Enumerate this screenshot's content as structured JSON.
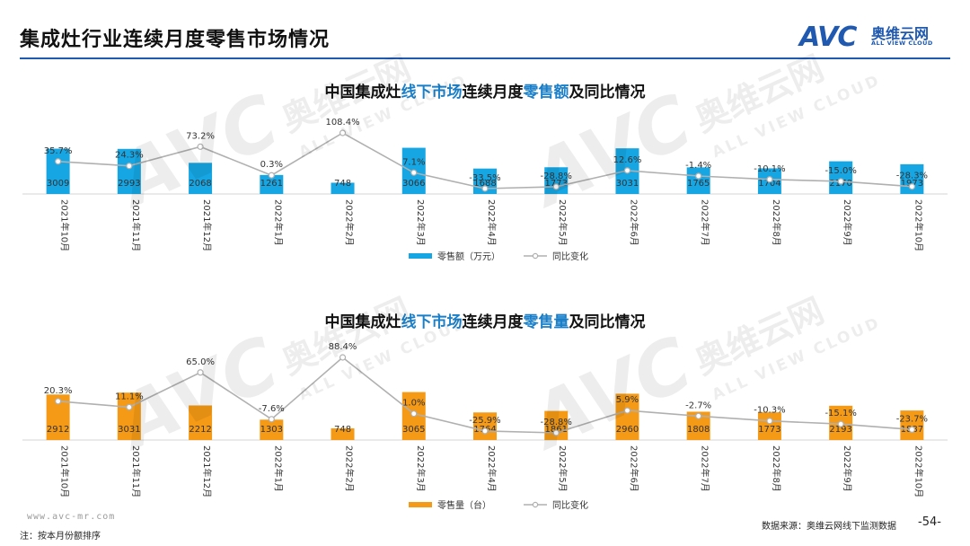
{
  "header": {
    "title": "集成灶行业连续月度零售市场情况",
    "logo_mark": "AVC",
    "logo_cn": "奥维云网",
    "logo_en": "ALL VIEW CLOUD"
  },
  "watermark": {
    "mark": "AVC",
    "cn": "奥维云网",
    "en": "ALL VIEW CLOUD"
  },
  "colors": {
    "brand": "#1f59b0",
    "bar_amount": "#16a6e4",
    "bar_volume": "#f59a16",
    "line": "#b0b0b0",
    "title_blue": "#1a7fc8"
  },
  "chart_data": [
    {
      "type": "bar",
      "title_parts": [
        "中国集成灶",
        "线下市场",
        "连续月度",
        "零售额",
        "及同比情况"
      ],
      "categories": [
        "2021年10月",
        "2021年11月",
        "2021年12月",
        "2022年1月",
        "2022年2月",
        "2022年3月",
        "2022年4月",
        "2022年5月",
        "2022年6月",
        "2022年7月",
        "2022年8月",
        "2022年9月",
        "2022年10月"
      ],
      "series": [
        {
          "name": "零售额（万元）",
          "kind": "bar",
          "values": [
            3009,
            2993,
            2068,
            1261,
            748,
            3066,
            1688,
            1773,
            3031,
            1765,
            1704,
            2170,
            1973
          ]
        },
        {
          "name": "同比变化",
          "kind": "line",
          "values": [
            35.7,
            24.3,
            73.2,
            0.3,
            108.4,
            7.1,
            -33.5,
            -28.8,
            12.6,
            -1.4,
            -10.1,
            -15.0,
            -28.3
          ]
        }
      ],
      "bar_labels": [
        "3009",
        "2993",
        "2068",
        "1261",
        "748",
        "3066",
        "1688",
        "1773",
        "3031",
        "1765",
        "1704",
        "2170",
        "1973"
      ],
      "line_labels": [
        "35.7%",
        "24.3%",
        "73.2%",
        "0.3%",
        "108.4%",
        "7.1%",
        "-33.5%",
        "-28.8%",
        "12.6%",
        "-1.4%",
        "-10.1%",
        "-15.0%",
        "-28.3%"
      ],
      "legend": [
        "零售额（万元）",
        "同比变化"
      ]
    },
    {
      "type": "bar",
      "title_parts": [
        "中国集成灶",
        "线下市场",
        "连续月度",
        "零售量",
        "及同比情况"
      ],
      "categories": [
        "2021年10月",
        "2021年11月",
        "2021年12月",
        "2022年1月",
        "2022年2月",
        "2022年3月",
        "2022年4月",
        "2022年5月",
        "2022年6月",
        "2022年7月",
        "2022年8月",
        "2022年9月",
        "2022年10月"
      ],
      "series": [
        {
          "name": "零售量（台）",
          "kind": "bar",
          "values": [
            2912,
            3031,
            2212,
            1303,
            748,
            3065,
            1764,
            1861,
            2960,
            1808,
            1773,
            2193,
            1887
          ]
        },
        {
          "name": "同比变化",
          "kind": "line",
          "values": [
            20.3,
            11.1,
            65.0,
            -7.6,
            88.4,
            1.0,
            -25.9,
            -28.8,
            5.9,
            -2.7,
            -10.3,
            -15.1,
            -23.7
          ]
        }
      ],
      "bar_labels": [
        "2912",
        "3031",
        "2212",
        "1303",
        "748",
        "3065",
        "1764",
        "1861",
        "2960",
        "1808",
        "1773",
        "2193",
        "1887"
      ],
      "line_labels": [
        "20.3%",
        "11.1%",
        "65.0%",
        "-7.6%",
        "88.4%",
        "1.0%",
        "-25.9%",
        "-28.8%",
        "5.9%",
        "-2.7%",
        "-10.3%",
        "-15.1%",
        "-23.7%"
      ],
      "legend": [
        "零售量（台）",
        "同比变化"
      ]
    }
  ],
  "footer": {
    "url": "www.avc-mr.com",
    "note": "注：按本月份额排序",
    "source": "数据来源：奥维云网线下监测数据",
    "page": "-54-"
  }
}
